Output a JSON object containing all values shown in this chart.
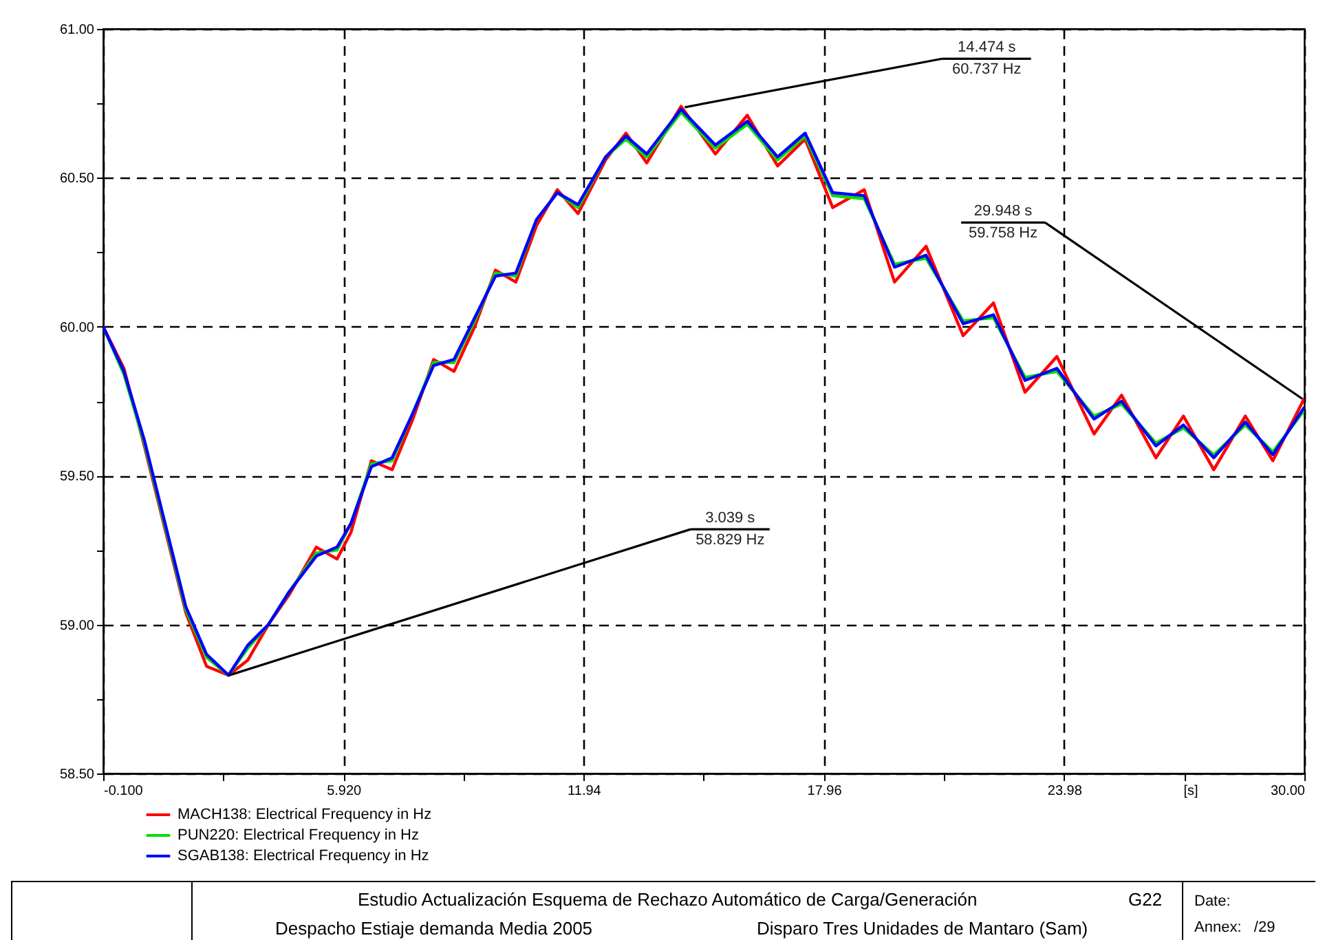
{
  "chart_data": {
    "type": "line",
    "title": "Estudio Actualización Esquema de Rechazo Automático de Carga/Generación",
    "subtitle": "Despacho Estiaje demanda Media 2005",
    "xlabel": "[s]",
    "x": [
      -0.1,
      0.42,
      0.93,
      1.45,
      1.97,
      2.49,
      3.04,
      3.52,
      4.04,
      4.56,
      5.24,
      5.76,
      6.11,
      6.62,
      7.14,
      7.66,
      8.18,
      8.69,
      9.21,
      9.73,
      10.24,
      10.76,
      11.28,
      11.8,
      12.49,
      13.0,
      13.52,
      14.38,
      15.24,
      16.04,
      16.8,
      17.49,
      18.18,
      18.97,
      19.73,
      20.52,
      21.45,
      22.21,
      23.0,
      23.8,
      24.73,
      25.42,
      26.28,
      26.97,
      27.73,
      28.52,
      29.21,
      30.0
    ],
    "series": [
      {
        "name": "MACH138: Electrical Frequency in Hz",
        "color": "#ff0000",
        "values": [
          60.0,
          59.86,
          59.6,
          59.32,
          59.04,
          58.86,
          58.83,
          58.88,
          59.0,
          59.1,
          59.26,
          59.22,
          59.31,
          59.55,
          59.52,
          59.69,
          59.89,
          59.85,
          60.0,
          60.19,
          60.15,
          60.34,
          60.46,
          60.38,
          60.56,
          60.65,
          60.55,
          60.74,
          60.58,
          60.71,
          60.54,
          60.63,
          60.4,
          60.46,
          60.15,
          60.27,
          59.97,
          60.08,
          59.78,
          59.9,
          59.64,
          59.77,
          59.56,
          59.7,
          59.52,
          59.7,
          59.55,
          59.76
        ]
      },
      {
        "name": "PUN220: Electrical Frequency in Hz",
        "color": "#00e000",
        "values": [
          60.0,
          59.84,
          59.61,
          59.33,
          59.05,
          58.89,
          58.83,
          58.92,
          59.0,
          59.11,
          59.24,
          59.25,
          59.34,
          59.54,
          59.55,
          59.71,
          59.88,
          59.88,
          60.02,
          60.18,
          60.17,
          60.36,
          60.45,
          60.4,
          60.57,
          60.63,
          60.57,
          60.72,
          60.6,
          60.68,
          60.56,
          60.64,
          60.44,
          60.43,
          60.21,
          60.23,
          60.02,
          60.03,
          59.83,
          59.85,
          59.7,
          59.74,
          59.61,
          59.66,
          59.57,
          59.67,
          59.58,
          59.72
        ]
      },
      {
        "name": "SGAB138: Electrical Frequency in Hz",
        "color": "#0000ff",
        "values": [
          60.0,
          59.85,
          59.62,
          59.34,
          59.06,
          58.9,
          58.83,
          58.93,
          59.0,
          59.11,
          59.23,
          59.26,
          59.34,
          59.53,
          59.56,
          59.71,
          59.87,
          59.89,
          60.03,
          60.17,
          60.18,
          60.36,
          60.45,
          60.41,
          60.57,
          60.64,
          60.58,
          60.73,
          60.61,
          60.69,
          60.57,
          60.65,
          60.45,
          60.44,
          60.2,
          60.24,
          60.01,
          60.04,
          59.82,
          59.86,
          59.69,
          59.75,
          59.6,
          59.67,
          59.56,
          59.68,
          59.57,
          59.73
        ]
      }
    ],
    "xlim": [
      -0.1,
      30.0
    ],
    "xticks": [
      {
        "value": -0.1,
        "label": "-0.100"
      },
      {
        "value": 2.91,
        "label": null
      },
      {
        "value": 5.92,
        "label": "5.920"
      },
      {
        "value": 8.93,
        "label": null
      },
      {
        "value": 11.94,
        "label": "11.94"
      },
      {
        "value": 14.95,
        "label": null
      },
      {
        "value": 17.96,
        "label": "17.96"
      },
      {
        "value": 20.97,
        "label": null
      },
      {
        "value": 23.98,
        "label": "23.98"
      },
      {
        "value": 26.99,
        "label": null
      },
      {
        "value": 30.0,
        "label": "30.00"
      }
    ],
    "ylim": [
      58.5,
      61.0
    ],
    "yticks": [
      {
        "value": 58.5,
        "label": "58.50"
      },
      {
        "value": 58.75,
        "label": null
      },
      {
        "value": 59.0,
        "label": "59.00"
      },
      {
        "value": 59.25,
        "label": null
      },
      {
        "value": 59.5,
        "label": "59.50"
      },
      {
        "value": 59.75,
        "label": null
      },
      {
        "value": 60.0,
        "label": "60.00"
      },
      {
        "value": 60.25,
        "label": null
      },
      {
        "value": 60.5,
        "label": "60.50"
      },
      {
        "value": 60.75,
        "label": null
      },
      {
        "value": 61.0,
        "label": "61.00"
      }
    ],
    "grid": true,
    "legend": "bottom left",
    "marker": "none",
    "line_style": "solid",
    "annotations": [
      {
        "text": "3.039 s\n58.829 Hz",
        "x": 3.039,
        "y": 58.829
      },
      {
        "text": "14.474 s\n60.737 Hz",
        "x": 14.474,
        "y": 60.737
      },
      {
        "text": "29.948 s\n59.758 Hz",
        "x": 29.948,
        "y": 59.758
      },
      "G22",
      "Disparo Tres Unidades de Mantaro (Sam)",
      "Date:",
      "Annex:   /29"
    ]
  }
}
